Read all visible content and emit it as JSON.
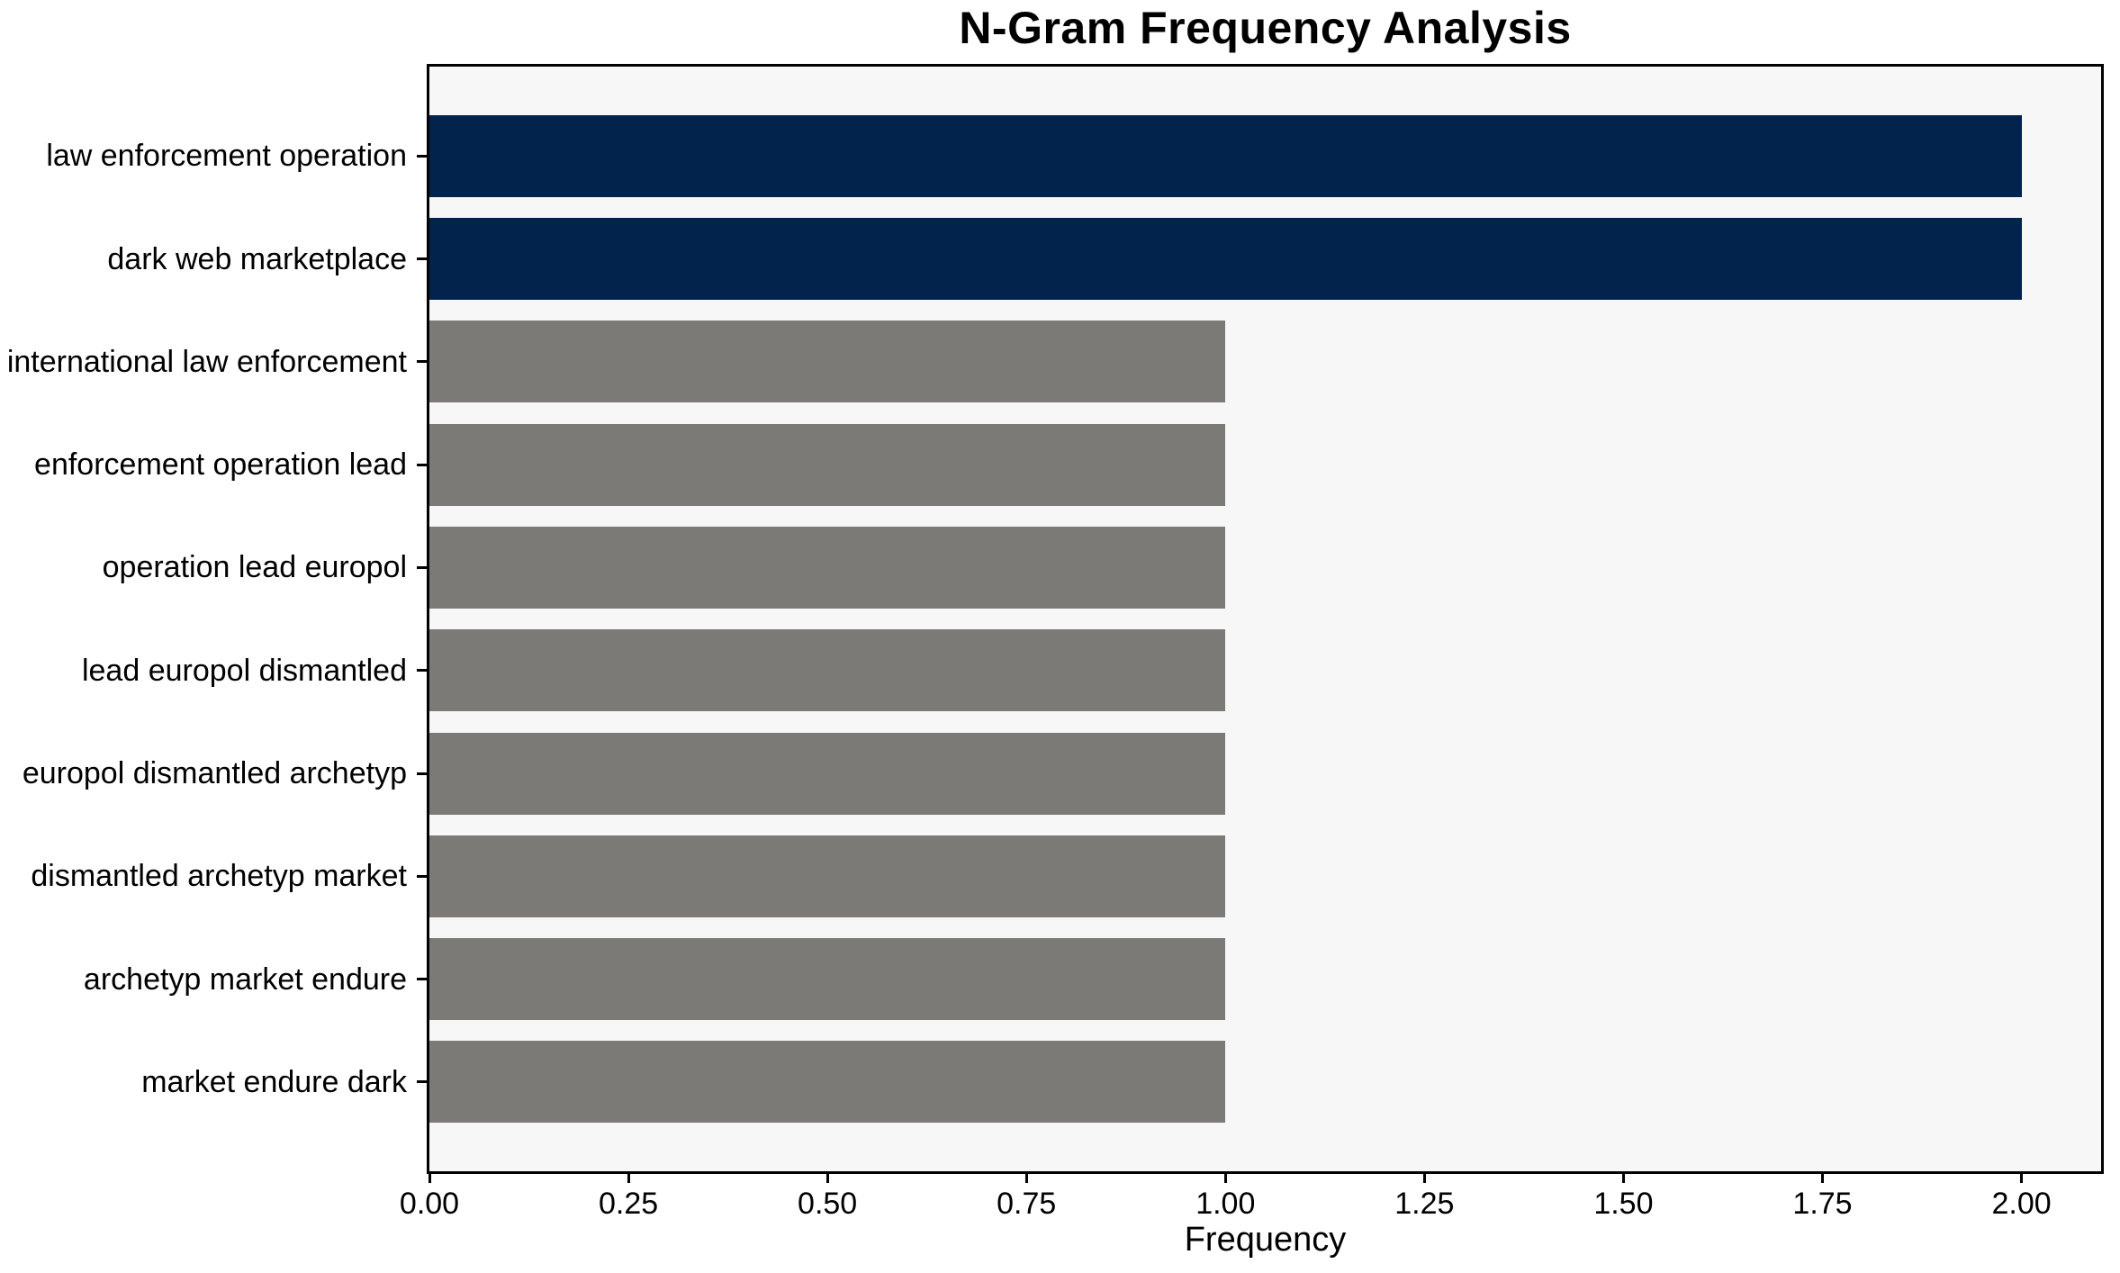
{
  "figure": {
    "background": "#ffffff",
    "plot_background": "#f8f7f7",
    "axis_color": "#000000",
    "text_color": "#000000"
  },
  "chart_data": {
    "type": "bar",
    "orientation": "horizontal",
    "title": "N-Gram Frequency Analysis",
    "xlabel": "Frequency",
    "ylabel": "",
    "categories": [
      "law enforcement operation",
      "dark web marketplace",
      "international law enforcement",
      "enforcement operation lead",
      "operation lead europol",
      "lead europol dismantled",
      "europol dismantled archetyp",
      "dismantled archetyp market",
      "archetyp market endure",
      "market endure dark"
    ],
    "values": [
      2.0,
      2.0,
      1.0,
      1.0,
      1.0,
      1.0,
      1.0,
      1.0,
      1.0,
      1.0
    ],
    "bar_colors": [
      "#02234c",
      "#02234c",
      "#7b7a77",
      "#7b7a77",
      "#7b7a77",
      "#7b7a77",
      "#7b7a77",
      "#7b7a77",
      "#7b7a77",
      "#7b7a77"
    ],
    "highlight_color": "#02234c",
    "default_color": "#7b7a77",
    "xlim": [
      0,
      2.1
    ],
    "xticks": {
      "values": [
        0,
        0.25,
        0.5,
        0.75,
        1.0,
        1.25,
        1.5,
        1.75,
        2.0
      ],
      "labels": [
        "0.00",
        "0.25",
        "0.50",
        "0.75",
        "1.00",
        "1.25",
        "1.50",
        "1.75",
        "2.00"
      ]
    },
    "grid": false,
    "legend": null
  }
}
